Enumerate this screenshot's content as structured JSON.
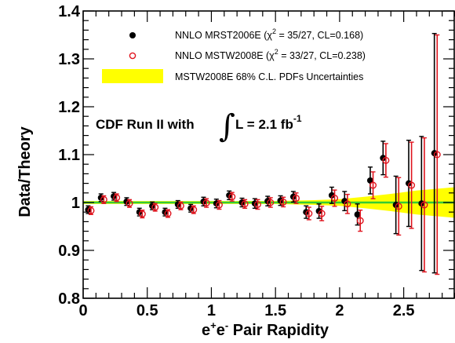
{
  "chart_data": {
    "type": "scatter",
    "title": "",
    "xlabel_prefix": "e",
    "xlabel_sup1": "+",
    "xlabel_mid": "e",
    "xlabel_sup2": "-",
    "xlabel_suffix": " Pair Rapidity",
    "ylabel": "Data/Theory",
    "xlim": [
      0,
      2.9
    ],
    "ylim": [
      0.8,
      1.4
    ],
    "x_ticks": [
      "0",
      "0.5",
      "1",
      "1.5",
      "2",
      "2.5"
    ],
    "y_ticks": [
      "0.8",
      "0.9",
      "1",
      "1.1",
      "1.2",
      "1.3",
      "1.4"
    ],
    "grid": false,
    "legend_position": "top",
    "legend": {
      "mrst_prefix": "NNLO MRST2006E (",
      "mrst_chi": "χ",
      "mrst_sup": "2",
      "mrst_suffix": " = 35/27, CL=0.168)",
      "mstw_prefix": "NNLO MSTW2008E (",
      "mstw_chi": "χ",
      "mstw_sup": "2",
      "mstw_suffix": " = 33/27, CL=0.238)",
      "band_label": "MSTW2008E 68% C.L. PDFs Uncertainties"
    },
    "annotation": {
      "prefix": "CDF Run II with",
      "integral": "∫",
      "body": "L = 2.1 fb",
      "sup": "-1"
    },
    "series": [
      {
        "name": "NNLO MRST2006E",
        "marker": "filled-circle",
        "color": "#000000",
        "x": [
          0.05,
          0.15,
          0.25,
          0.35,
          0.45,
          0.55,
          0.65,
          0.75,
          0.85,
          0.95,
          1.05,
          1.15,
          1.25,
          1.35,
          1.45,
          1.55,
          1.65,
          1.75,
          1.85,
          1.95,
          2.05,
          2.15,
          2.25,
          2.35,
          2.45,
          2.55,
          2.65,
          2.75
        ],
        "y": [
          0.985,
          1.01,
          1.013,
          1.002,
          0.98,
          0.993,
          0.98,
          0.996,
          0.988,
          1.002,
          0.998,
          1.015,
          1.0,
          0.998,
          1.003,
          1.004,
          1.012,
          0.98,
          0.982,
          1.015,
          1.003,
          0.975,
          1.046,
          1.093,
          0.995,
          1.04,
          0.998,
          1.103
        ],
        "yerr": [
          0.008,
          0.008,
          0.008,
          0.008,
          0.008,
          0.008,
          0.008,
          0.008,
          0.008,
          0.009,
          0.009,
          0.009,
          0.009,
          0.01,
          0.01,
          0.01,
          0.011,
          0.013,
          0.015,
          0.017,
          0.02,
          0.022,
          0.028,
          0.035,
          0.06,
          0.09,
          0.14,
          0.25
        ]
      },
      {
        "name": "NNLO MSTW2008E",
        "marker": "open-circle",
        "color": "#e0141e",
        "x": [
          0.05,
          0.15,
          0.25,
          0.35,
          0.45,
          0.55,
          0.65,
          0.75,
          0.85,
          0.95,
          1.05,
          1.15,
          1.25,
          1.35,
          1.45,
          1.55,
          1.65,
          1.75,
          1.85,
          1.95,
          2.05,
          2.15,
          2.25,
          2.35,
          2.45,
          2.55,
          2.65,
          2.75
        ],
        "y": [
          0.983,
          1.006,
          1.01,
          0.998,
          0.976,
          0.99,
          0.977,
          0.993,
          0.985,
          0.999,
          0.995,
          1.012,
          0.997,
          0.996,
          1.0,
          1.001,
          1.009,
          0.977,
          0.977,
          1.009,
          0.997,
          0.962,
          1.036,
          1.088,
          0.992,
          1.036,
          0.995,
          1.1
        ],
        "yerr": [
          0.008,
          0.008,
          0.008,
          0.008,
          0.008,
          0.008,
          0.008,
          0.008,
          0.008,
          0.009,
          0.009,
          0.009,
          0.009,
          0.01,
          0.01,
          0.01,
          0.011,
          0.013,
          0.015,
          0.017,
          0.02,
          0.022,
          0.028,
          0.035,
          0.06,
          0.09,
          0.14,
          0.25
        ]
      }
    ],
    "band": {
      "name": "MSTW2008E 68% C.L. PDFs Uncertainties",
      "color": "#ffff00",
      "x": [
        0,
        1.5,
        1.8,
        2.0,
        2.2,
        2.4,
        2.6,
        2.9
      ],
      "low": [
        0.997,
        0.997,
        0.995,
        0.993,
        0.988,
        0.982,
        0.975,
        0.968
      ],
      "high": [
        1.003,
        1.003,
        1.005,
        1.007,
        1.012,
        1.018,
        1.025,
        1.032
      ]
    },
    "reference_line": {
      "y": 1.0,
      "color": "#33cc33"
    }
  }
}
